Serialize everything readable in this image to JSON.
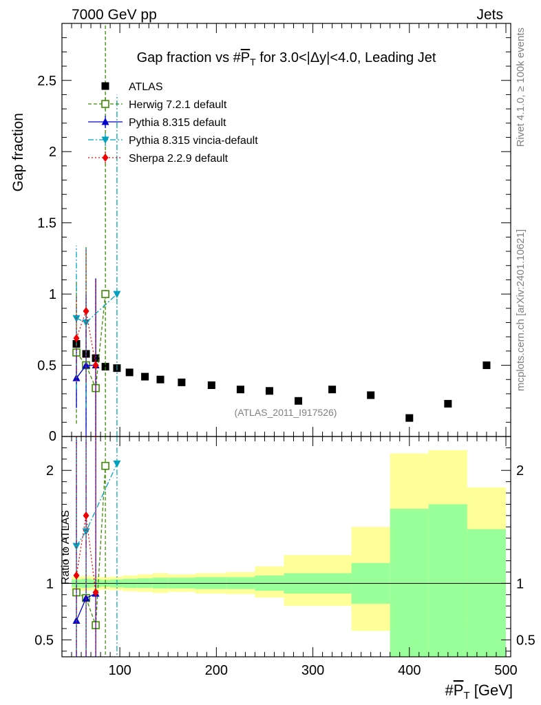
{
  "header": {
    "left": "7000 GeV pp",
    "right": "Jets",
    "side_rivet": "Rivet 4.1.0, ≥ 100k events",
    "side_mcplots": "mcplots.cern.ch [arXiv:2401.10621]",
    "watermark": "(ATLAS_2011_I917526)"
  },
  "chart_data": [
    {
      "type": "scatter",
      "title": "Gap fraction vs #P_T for 3.0<|Δy|<4.0, Leading Jet",
      "title_parts": {
        "pre": "Gap fraction vs #",
        "p": "P",
        "t": "T",
        "post": " for 3.0<|Δy|<4.0, Leading Jet"
      },
      "ylabel": "Gap fraction",
      "xlim": [
        40,
        505
      ],
      "ylim": [
        0,
        2.9
      ],
      "yticks": [
        0.5,
        1,
        1.5,
        2,
        2.5
      ],
      "ytick_labels": [
        "0.5",
        "1",
        "1.5",
        "2",
        "2.5"
      ],
      "ymin_label": "0",
      "legend_position": "top-left",
      "series": [
        {
          "name": "ATLAS",
          "color": "#000000",
          "marker": "square-filled",
          "line": "none",
          "x": [
            55,
            65,
            75,
            85,
            97,
            110,
            126,
            142,
            164,
            195,
            225,
            255,
            285,
            320,
            360,
            400,
            440,
            480
          ],
          "y": [
            0.65,
            0.58,
            0.55,
            0.49,
            0.48,
            0.45,
            0.42,
            0.4,
            0.38,
            0.36,
            0.33,
            0.32,
            0.25,
            0.33,
            0.29,
            0.13,
            0.23,
            0.5
          ]
        },
        {
          "name": "Herwig 7.2.1 default",
          "color": "#3a8a00",
          "marker": "square-open",
          "line": "dashed",
          "x": [
            55,
            65,
            75,
            85
          ],
          "y": [
            0.59,
            0.5,
            0.34,
            1.0
          ],
          "err_low": [
            0.5,
            0.43,
            0.34,
            1.0
          ],
          "err_high": [
            0.5,
            0.83,
            0.77,
            2.0
          ]
        },
        {
          "name": "Pythia 8.315 default",
          "color": "#0000cc",
          "marker": "triangle-up",
          "line": "solid",
          "x": [
            55,
            65,
            75
          ],
          "y": [
            0.41,
            0.5,
            0.5
          ],
          "err_low": [
            0.21,
            0.5,
            0.5
          ],
          "err_high": [
            0.21,
            0.5,
            0.61
          ]
        },
        {
          "name": "Pythia 8.315 vincia-default",
          "color": "#00a0c0",
          "marker": "triangle-down",
          "line": "dashdot",
          "x": [
            55,
            65,
            97
          ],
          "y": [
            0.83,
            0.8,
            1.0
          ],
          "err_low": [
            0.5,
            0.6,
            1.0
          ],
          "err_high": [
            0.51,
            0.53,
            1.4
          ]
        },
        {
          "name": "Sherpa 2.2.9 default",
          "color": "#ee0000",
          "marker": "diamond",
          "line": "dotted",
          "x": [
            55,
            65,
            75
          ],
          "y": [
            0.69,
            0.88,
            0.5
          ],
          "err_low": [
            0.3,
            0.5,
            0.5
          ],
          "err_high": [
            0.3,
            0.43,
            0.61
          ]
        }
      ]
    },
    {
      "type": "ratio",
      "ylabel": "Ratio to ATLAS",
      "xlabel_parts": {
        "pre": "#",
        "p": "P",
        "t": "T",
        "post": " [GeV]"
      },
      "xlim": [
        40,
        505
      ],
      "ylim": [
        0.35,
        2.3
      ],
      "xticks": [
        100,
        200,
        300,
        400,
        500
      ],
      "xtick_labels": [
        "100",
        "200",
        "300",
        "400",
        "500"
      ],
      "yticks": [
        0.5,
        1,
        2
      ],
      "ytick_labels": [
        "0.5",
        "1",
        "2"
      ],
      "bands": {
        "edges": [
          50,
          60,
          70,
          80,
          90,
          103,
          118,
          134,
          150,
          178,
          210,
          240,
          270,
          340,
          380,
          420,
          460,
          500
        ],
        "stat_low": [
          0.965,
          0.96,
          0.965,
          0.97,
          0.965,
          0.96,
          0.96,
          0.955,
          0.955,
          0.95,
          0.95,
          0.935,
          0.91,
          0.82,
          0.35,
          0.35,
          0.35
        ],
        "stat_high": [
          1.035,
          1.04,
          1.035,
          1.03,
          1.035,
          1.04,
          1.045,
          1.05,
          1.05,
          1.055,
          1.055,
          1.07,
          1.09,
          1.18,
          1.66,
          1.7,
          1.48
        ],
        "tot_low": [
          0.94,
          0.935,
          0.94,
          0.945,
          0.94,
          0.93,
          0.925,
          0.915,
          0.925,
          0.91,
          0.905,
          0.875,
          0.8,
          0.58,
          0.35,
          0.35,
          0.62
        ],
        "tot_high": [
          1.06,
          1.065,
          1.06,
          1.055,
          1.06,
          1.07,
          1.08,
          1.09,
          1.08,
          1.09,
          1.1,
          1.15,
          1.25,
          1.5,
          2.15,
          2.18,
          1.85
        ],
        "stat_color": "#99ff99",
        "total_color": "#ffff99"
      },
      "series": [
        {
          "name": "Herwig 7.2.1 default",
          "color": "#3a8a00",
          "marker": "square-open",
          "line": "dashed",
          "x": [
            55,
            65,
            75,
            85
          ],
          "y": [
            0.92,
            0.87,
            0.63,
            2.04
          ]
        },
        {
          "name": "Pythia 8.315 default",
          "color": "#0000cc",
          "marker": "triangle-up",
          "line": "solid",
          "x": [
            55,
            65,
            75
          ],
          "y": [
            0.67,
            0.87,
            0.91
          ]
        },
        {
          "name": "Pythia 8.315 vincia-default",
          "color": "#00a0c0",
          "marker": "triangle-down",
          "line": "dashdot",
          "x": [
            55,
            65,
            97
          ],
          "y": [
            1.33,
            1.46,
            2.06
          ]
        },
        {
          "name": "Sherpa 2.2.9 default",
          "color": "#ee0000",
          "marker": "diamond",
          "line": "dotted",
          "x": [
            55,
            65,
            75
          ],
          "y": [
            1.07,
            1.6,
            0.92
          ]
        }
      ]
    }
  ]
}
